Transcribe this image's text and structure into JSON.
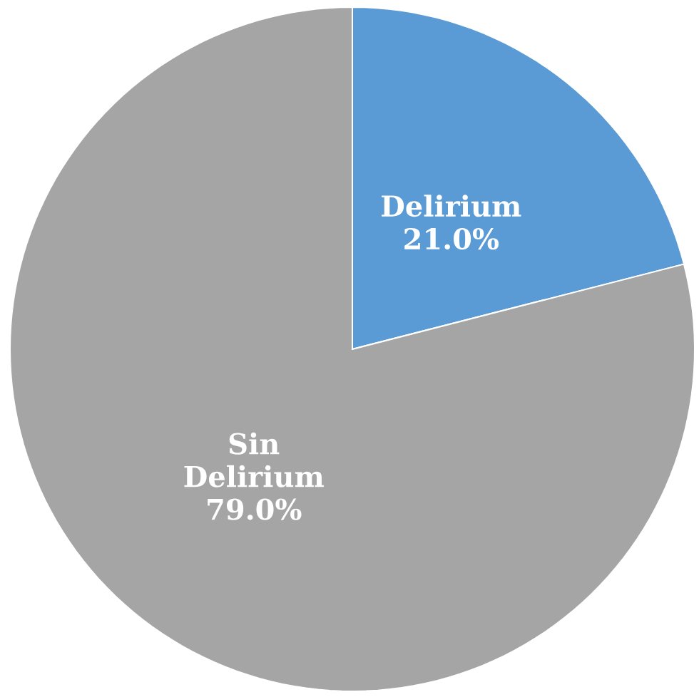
{
  "chart_data": {
    "type": "pie",
    "categories": [
      "Delirium",
      "Sin Delirium"
    ],
    "values": [
      21.0,
      79.0
    ],
    "colors": [
      "#5b9bd5",
      "#a5a5a5"
    ],
    "value_labels": [
      "21.0%",
      "79.0%"
    ]
  }
}
